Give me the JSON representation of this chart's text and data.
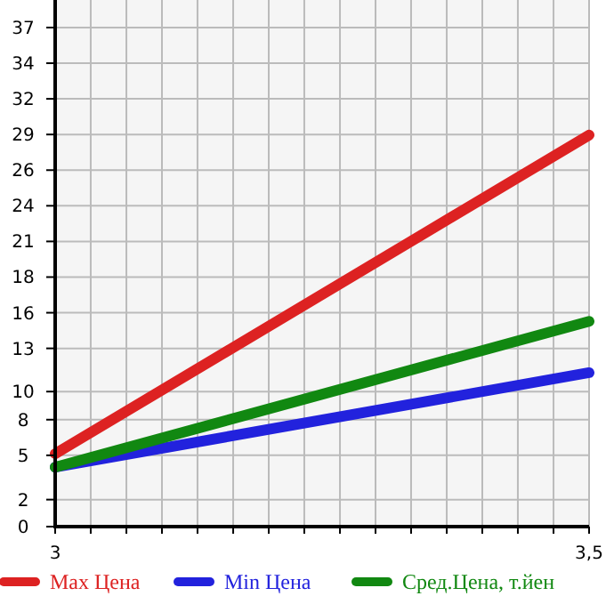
{
  "chart_data": {
    "type": "line",
    "x": [
      3,
      3.5
    ],
    "series": [
      {
        "name": "Max Цена",
        "color": "#dd2222",
        "values": [
          5.4,
          29
        ]
      },
      {
        "name": "Min Цена",
        "color": "#2222dd",
        "values": [
          4.4,
          11.4
        ]
      },
      {
        "name": "Сред.Цена, т.йен",
        "color": "#118811",
        "values": [
          4.4,
          15.2
        ]
      }
    ],
    "xlim": [
      3,
      3.5
    ],
    "xticks": [
      3,
      {
        "value": 3.0333,
        "label": null
      },
      {
        "value": 3.0667,
        "label": null
      },
      {
        "value": 3.1,
        "label": null
      },
      {
        "value": 3.1333,
        "label": null
      },
      {
        "value": 3.1667,
        "label": null
      },
      {
        "value": 3.2,
        "label": null
      },
      {
        "value": 3.2333,
        "label": null
      },
      {
        "value": 3.2667,
        "label": null
      },
      {
        "value": 3.3,
        "label": null
      },
      {
        "value": 3.3333,
        "label": null
      },
      {
        "value": 3.3667,
        "label": null
      },
      {
        "value": 3.4,
        "label": null
      },
      {
        "value": 3.4333,
        "label": null
      },
      {
        "value": 3.4667,
        "label": null
      },
      {
        "value": 3.5,
        "label": "3,5"
      }
    ],
    "ylim": [
      0,
      39
    ],
    "yticks": [
      0,
      2,
      {
        "value": 5.28,
        "label": "5"
      },
      {
        "value": 7.92,
        "label": "8"
      },
      10,
      {
        "value": 13.2,
        "label": "13"
      },
      {
        "value": 15.84,
        "label": "16"
      },
      {
        "value": 18.48,
        "label": "18"
      },
      {
        "value": 21.12,
        "label": "21"
      },
      {
        "value": 23.76,
        "label": "24"
      },
      {
        "value": 26.4,
        "label": "26"
      },
      {
        "value": 29.04,
        "label": "29"
      },
      {
        "value": 31.68,
        "label": "32"
      },
      {
        "value": 34.32,
        "label": "34"
      },
      {
        "value": 36.96,
        "label": "37"
      }
    ],
    "grid": true,
    "legend": "bottom",
    "marker": "none",
    "line_style": "solid"
  }
}
